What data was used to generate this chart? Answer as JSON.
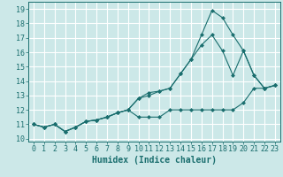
{
  "xlabel": "Humidex (Indice chaleur)",
  "bg_color": "#cce8e8",
  "grid_color": "#ffffff",
  "line_color": "#1a6e6e",
  "xlim": [
    -0.5,
    23.5
  ],
  "ylim": [
    9.8,
    19.5
  ],
  "xticks": [
    0,
    1,
    2,
    3,
    4,
    5,
    6,
    7,
    8,
    9,
    10,
    11,
    12,
    13,
    14,
    15,
    16,
    17,
    18,
    19,
    20,
    21,
    22,
    23
  ],
  "yticks": [
    10,
    11,
    12,
    13,
    14,
    15,
    16,
    17,
    18,
    19
  ],
  "series1_x": [
    0,
    1,
    2,
    3,
    4,
    5,
    6,
    7,
    8,
    9,
    10,
    11,
    12,
    13,
    14,
    15,
    16,
    17,
    18,
    19,
    20,
    21,
    22,
    23
  ],
  "series1_y": [
    11.0,
    10.8,
    11.0,
    10.5,
    10.8,
    11.2,
    11.3,
    11.5,
    11.8,
    12.0,
    11.5,
    11.5,
    11.5,
    12.0,
    12.0,
    12.0,
    12.0,
    12.0,
    12.0,
    12.0,
    12.5,
    13.5,
    13.5,
    13.7
  ],
  "series2_x": [
    0,
    1,
    2,
    3,
    4,
    5,
    6,
    7,
    8,
    9,
    10,
    11,
    12,
    13,
    14,
    15,
    16,
    17,
    18,
    19,
    20,
    21,
    22,
    23
  ],
  "series2_y": [
    11.0,
    10.8,
    11.0,
    10.5,
    10.8,
    11.2,
    11.3,
    11.5,
    11.8,
    12.0,
    12.8,
    13.0,
    13.3,
    13.5,
    14.5,
    15.5,
    16.5,
    17.2,
    16.1,
    14.4,
    16.1,
    14.4,
    13.5,
    13.7
  ],
  "series3_x": [
    0,
    1,
    2,
    3,
    4,
    5,
    6,
    7,
    8,
    9,
    10,
    11,
    12,
    13,
    14,
    15,
    16,
    17,
    18,
    19,
    20,
    21,
    22,
    23
  ],
  "series3_y": [
    11.0,
    10.8,
    11.0,
    10.5,
    10.8,
    11.2,
    11.3,
    11.5,
    11.8,
    12.0,
    12.8,
    13.2,
    13.3,
    13.5,
    14.5,
    15.5,
    17.2,
    18.9,
    18.4,
    17.2,
    16.1,
    14.4,
    13.5,
    13.7
  ],
  "marker_size": 2.5,
  "line_width": 0.8,
  "font_family": "monospace",
  "xlabel_fontsize": 7,
  "tick_fontsize": 6
}
